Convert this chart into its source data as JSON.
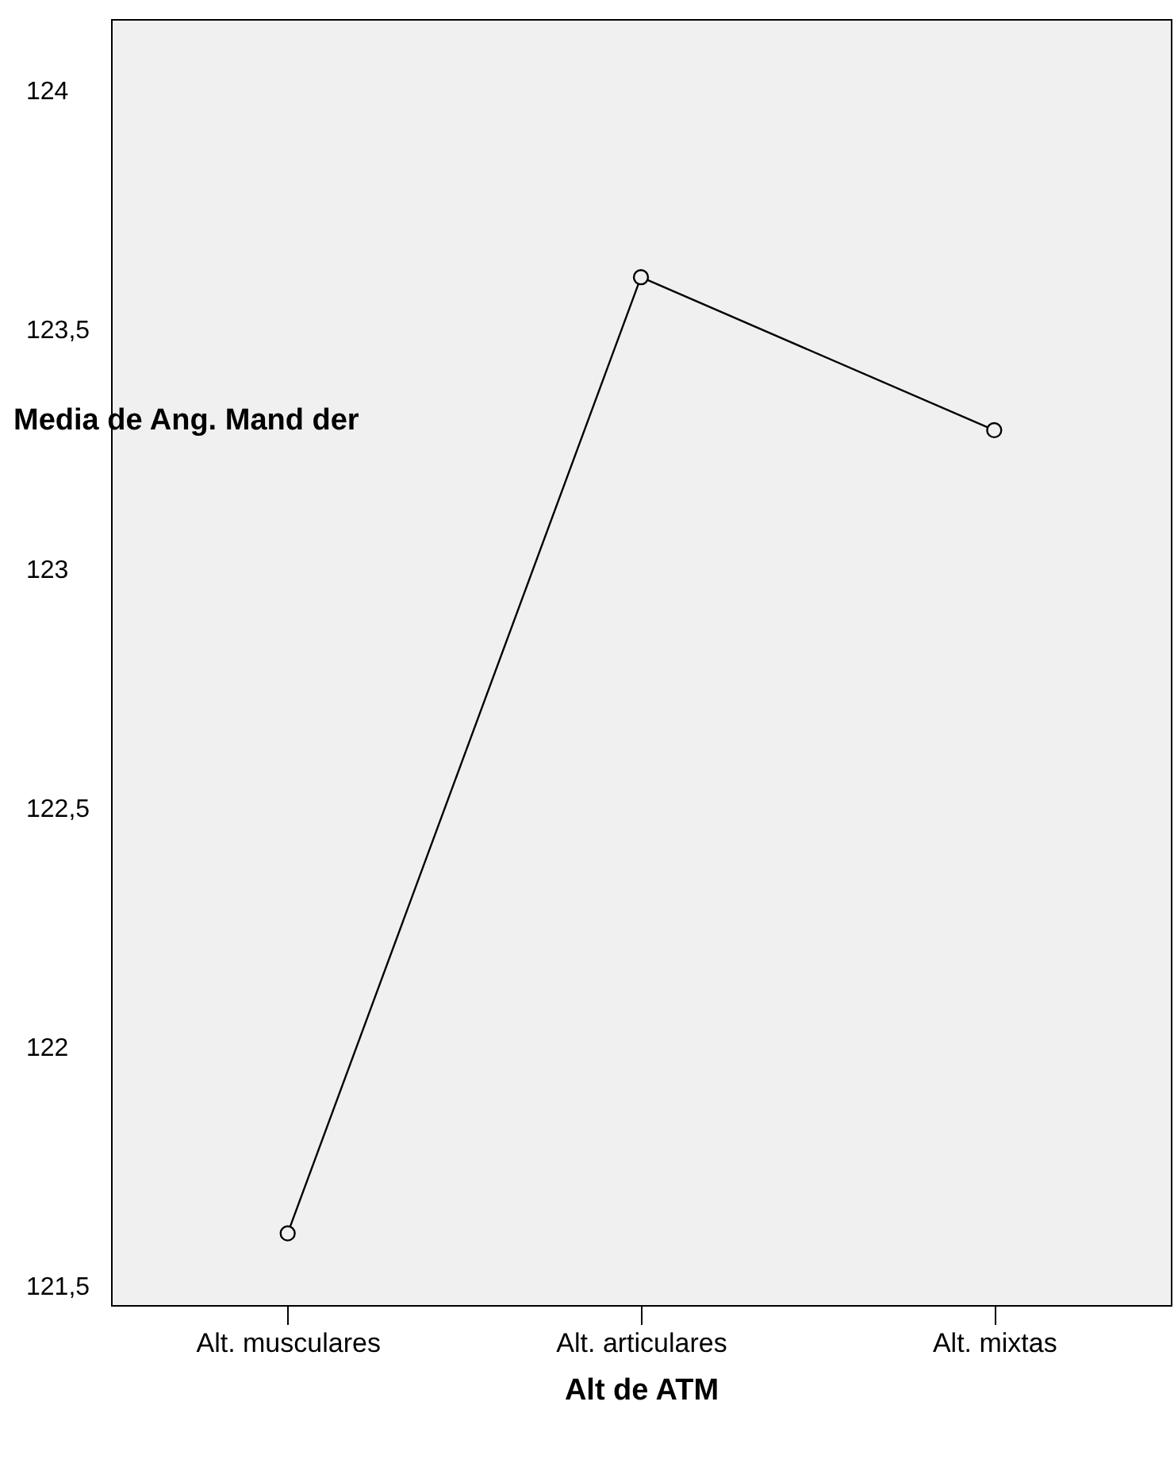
{
  "chart_data": {
    "type": "line",
    "xlabel": "Alt de ATM",
    "ylabel": "Media de Ang. Mand der",
    "categories": [
      "Alt. musculares",
      "Alt. articulares",
      "Alt. mixtas"
    ],
    "series": [
      {
        "color": "#000000",
        "values": [
          121.61,
          123.61,
          123.29
        ]
      }
    ],
    "ylim": [
      121.46,
      124.15
    ],
    "yticks": [
      {
        "value": 121.5,
        "label": "121,5"
      },
      {
        "value": 122,
        "label": "122"
      },
      {
        "value": 122.5,
        "label": "122,5"
      },
      {
        "value": 123,
        "label": "123"
      },
      {
        "value": 123.5,
        "label": "123,5"
      },
      {
        "value": 124,
        "label": "124"
      }
    ],
    "grid": false,
    "marker": "circle",
    "line_style": "solid"
  }
}
